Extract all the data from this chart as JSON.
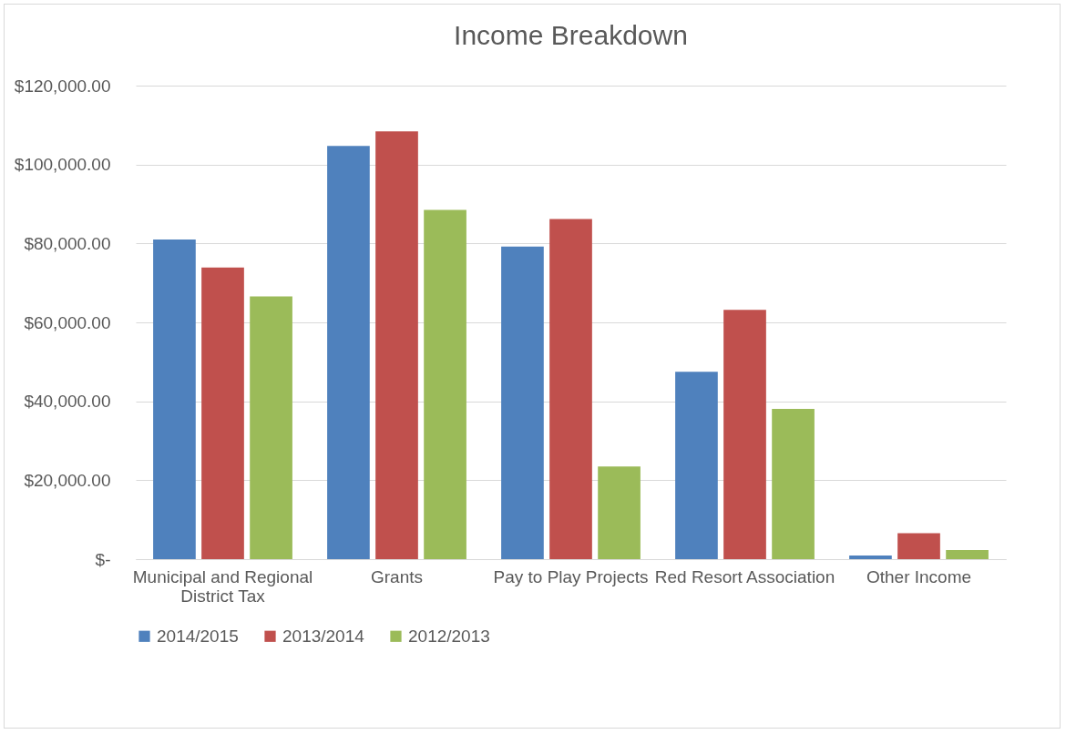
{
  "chart_data": {
    "type": "bar",
    "title": "Income Breakdown",
    "categories": [
      "Municipal and Regional District Tax",
      "Grants",
      "Pay to Play Projects",
      "Red Resort Association",
      "Other Income"
    ],
    "series": [
      {
        "name": "2014/2015",
        "color": "#4f81bd",
        "values": [
          81000,
          104700,
          79200,
          47500,
          900
        ]
      },
      {
        "name": "2013/2014",
        "color": "#c0504d",
        "values": [
          73900,
          108400,
          86200,
          63200,
          6600
        ]
      },
      {
        "name": "2012/2013",
        "color": "#9bbb59",
        "values": [
          66600,
          88500,
          23500,
          38100,
          2300
        ]
      }
    ],
    "ylim": [
      0,
      120000
    ],
    "yticks": [
      {
        "value": 0,
        "label": "$-"
      },
      {
        "value": 20000,
        "label": "$20,000.00"
      },
      {
        "value": 40000,
        "label": "$40,000.00"
      },
      {
        "value": 60000,
        "label": "$60,000.00"
      },
      {
        "value": 80000,
        "label": "$80,000.00"
      },
      {
        "value": 100000,
        "label": "$100,000.00"
      },
      {
        "value": 120000,
        "label": "$120,000.00"
      }
    ],
    "grid": "y",
    "legend": "bottom"
  }
}
